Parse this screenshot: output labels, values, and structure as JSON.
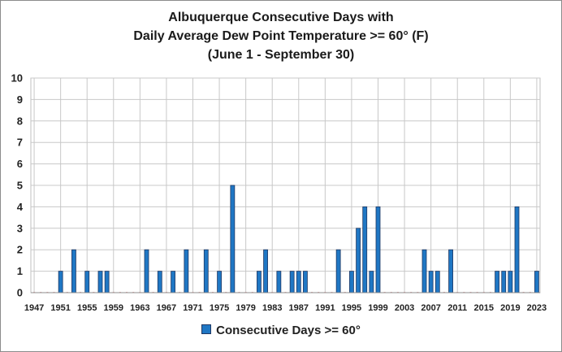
{
  "chart_data": {
    "type": "bar",
    "title_lines": [
      "Albuquerque Consecutive Days with",
      "Daily Average Dew Point Temperature >= 60° (F)",
      "(June 1 - September 30)"
    ],
    "x_tick_labels": [
      "1947",
      "1951",
      "1955",
      "1959",
      "1963",
      "1967",
      "1971",
      "1975",
      "1979",
      "1983",
      "1987",
      "1991",
      "1995",
      "1999",
      "2003",
      "2007",
      "2011",
      "2015",
      "2019",
      "2023"
    ],
    "y_tick_labels": [
      "0",
      "1",
      "2",
      "3",
      "4",
      "5",
      "6",
      "7",
      "8",
      "9",
      "10"
    ],
    "ylim": [
      0,
      10
    ],
    "xlim": [
      1947,
      2023
    ],
    "grid": true,
    "legend_position": "bottom",
    "series": [
      {
        "name": "Consecutive Days >= 60°",
        "color": "#1f77c4",
        "points": [
          {
            "x": 1951,
            "y": 1
          },
          {
            "x": 1953,
            "y": 2
          },
          {
            "x": 1955,
            "y": 1
          },
          {
            "x": 1957,
            "y": 1
          },
          {
            "x": 1958,
            "y": 1
          },
          {
            "x": 1964,
            "y": 2
          },
          {
            "x": 1966,
            "y": 1
          },
          {
            "x": 1968,
            "y": 1
          },
          {
            "x": 1970,
            "y": 2
          },
          {
            "x": 1973,
            "y": 2
          },
          {
            "x": 1975,
            "y": 1
          },
          {
            "x": 1977,
            "y": 5
          },
          {
            "x": 1981,
            "y": 1
          },
          {
            "x": 1982,
            "y": 2
          },
          {
            "x": 1984,
            "y": 1
          },
          {
            "x": 1986,
            "y": 1
          },
          {
            "x": 1987,
            "y": 1
          },
          {
            "x": 1988,
            "y": 1
          },
          {
            "x": 1993,
            "y": 2
          },
          {
            "x": 1995,
            "y": 1
          },
          {
            "x": 1996,
            "y": 3
          },
          {
            "x": 1997,
            "y": 4
          },
          {
            "x": 1998,
            "y": 1
          },
          {
            "x": 1999,
            "y": 4
          },
          {
            "x": 2006,
            "y": 2
          },
          {
            "x": 2007,
            "y": 1
          },
          {
            "x": 2008,
            "y": 1
          },
          {
            "x": 2010,
            "y": 2
          },
          {
            "x": 2017,
            "y": 1
          },
          {
            "x": 2018,
            "y": 1
          },
          {
            "x": 2019,
            "y": 1
          },
          {
            "x": 2020,
            "y": 4
          },
          {
            "x": 2023,
            "y": 1
          }
        ]
      }
    ]
  }
}
